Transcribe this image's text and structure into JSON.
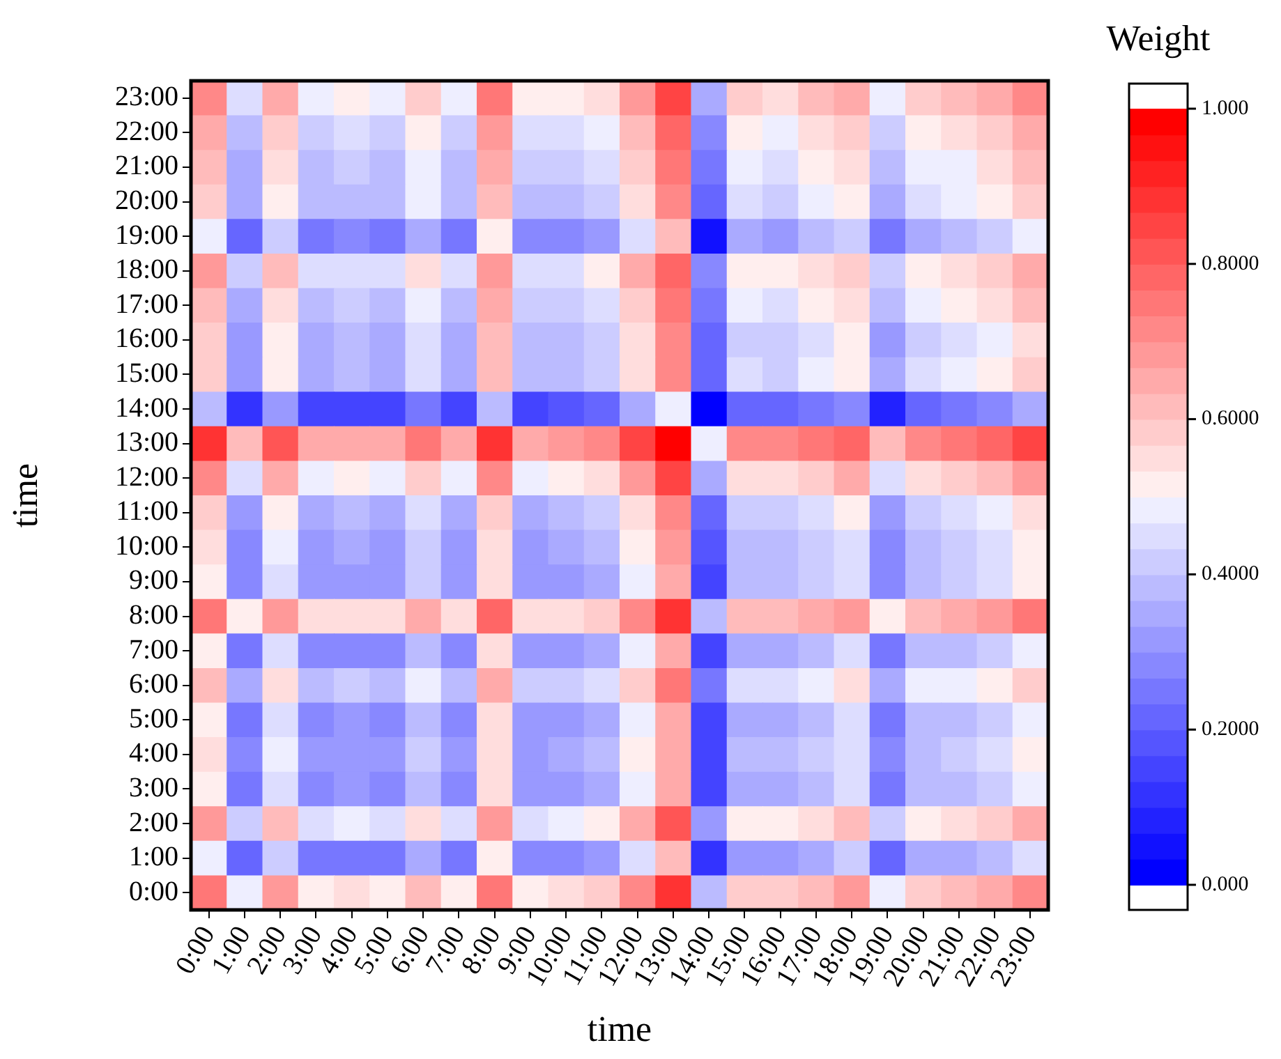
{
  "chart_data": {
    "type": "heatmap",
    "xlabel": "time",
    "ylabel": "time",
    "clabel": "Weight",
    "categories": [
      "0:00",
      "1:00",
      "2:00",
      "3:00",
      "4:00",
      "5:00",
      "6:00",
      "7:00",
      "8:00",
      "9:00",
      "10:00",
      "11:00",
      "12:00",
      "13:00",
      "14:00",
      "15:00",
      "16:00",
      "17:00",
      "18:00",
      "19:00",
      "20:00",
      "21:00",
      "22:00",
      "23:00"
    ],
    "y_categories": [
      "23:00",
      "22:00",
      "21:00",
      "20:00",
      "19:00",
      "18:00",
      "17:00",
      "16:00",
      "15:00",
      "14:00",
      "13:00",
      "12:00",
      "11:00",
      "10:00",
      "9:00",
      "8:00",
      "7:00",
      "6:00",
      "5:00",
      "4:00",
      "3:00",
      "2:00",
      "1:00",
      "0:00"
    ],
    "cells": [
      [
        0.72,
        0.45,
        0.65,
        0.48,
        0.52,
        0.48,
        0.58,
        0.48,
        0.75,
        0.52,
        0.52,
        0.55,
        0.68,
        0.85,
        0.35,
        0.58,
        0.55,
        0.62,
        0.65,
        0.48,
        0.58,
        0.62,
        0.65,
        0.72
      ],
      [
        0.65,
        0.38,
        0.58,
        0.42,
        0.45,
        0.42,
        0.52,
        0.42,
        0.68,
        0.45,
        0.45,
        0.48,
        0.62,
        0.78,
        0.28,
        0.52,
        0.48,
        0.55,
        0.58,
        0.42,
        0.52,
        0.55,
        0.58,
        0.65
      ],
      [
        0.62,
        0.35,
        0.55,
        0.38,
        0.42,
        0.38,
        0.48,
        0.38,
        0.65,
        0.42,
        0.42,
        0.45,
        0.58,
        0.75,
        0.25,
        0.48,
        0.45,
        0.52,
        0.55,
        0.38,
        0.48,
        0.48,
        0.55,
        0.62
      ],
      [
        0.58,
        0.35,
        0.52,
        0.38,
        0.38,
        0.38,
        0.48,
        0.38,
        0.62,
        0.38,
        0.38,
        0.42,
        0.55,
        0.72,
        0.22,
        0.45,
        0.42,
        0.48,
        0.52,
        0.35,
        0.45,
        0.48,
        0.52,
        0.58
      ],
      [
        0.48,
        0.22,
        0.42,
        0.25,
        0.28,
        0.25,
        0.35,
        0.25,
        0.52,
        0.28,
        0.28,
        0.32,
        0.45,
        0.62,
        0.05,
        0.35,
        0.32,
        0.38,
        0.42,
        0.25,
        0.35,
        0.38,
        0.42,
        0.48
      ],
      [
        0.68,
        0.42,
        0.62,
        0.45,
        0.45,
        0.45,
        0.55,
        0.45,
        0.68,
        0.45,
        0.45,
        0.52,
        0.65,
        0.78,
        0.28,
        0.52,
        0.52,
        0.55,
        0.58,
        0.42,
        0.52,
        0.55,
        0.58,
        0.65
      ],
      [
        0.62,
        0.35,
        0.55,
        0.38,
        0.42,
        0.38,
        0.48,
        0.38,
        0.65,
        0.42,
        0.42,
        0.45,
        0.58,
        0.75,
        0.25,
        0.48,
        0.45,
        0.52,
        0.55,
        0.38,
        0.48,
        0.52,
        0.55,
        0.62
      ],
      [
        0.58,
        0.32,
        0.52,
        0.35,
        0.38,
        0.35,
        0.45,
        0.35,
        0.62,
        0.38,
        0.38,
        0.42,
        0.55,
        0.72,
        0.22,
        0.42,
        0.42,
        0.45,
        0.52,
        0.32,
        0.42,
        0.45,
        0.48,
        0.55
      ],
      [
        0.58,
        0.32,
        0.52,
        0.35,
        0.38,
        0.35,
        0.45,
        0.35,
        0.62,
        0.38,
        0.38,
        0.42,
        0.55,
        0.72,
        0.22,
        0.45,
        0.42,
        0.48,
        0.52,
        0.35,
        0.45,
        0.48,
        0.52,
        0.58
      ],
      [
        0.38,
        0.12,
        0.32,
        0.15,
        0.15,
        0.15,
        0.25,
        0.15,
        0.38,
        0.15,
        0.18,
        0.22,
        0.35,
        0.48,
        0.02,
        0.22,
        0.22,
        0.25,
        0.28,
        0.08,
        0.22,
        0.25,
        0.28,
        0.35
      ],
      [
        0.88,
        0.62,
        0.82,
        0.65,
        0.65,
        0.65,
        0.75,
        0.65,
        0.88,
        0.65,
        0.68,
        0.72,
        0.85,
        0.98,
        0.48,
        0.72,
        0.72,
        0.75,
        0.78,
        0.62,
        0.72,
        0.75,
        0.78,
        0.85
      ],
      [
        0.72,
        0.45,
        0.65,
        0.48,
        0.52,
        0.48,
        0.58,
        0.48,
        0.72,
        0.48,
        0.52,
        0.55,
        0.68,
        0.85,
        0.35,
        0.55,
        0.55,
        0.58,
        0.65,
        0.45,
        0.55,
        0.58,
        0.62,
        0.68
      ],
      [
        0.58,
        0.32,
        0.52,
        0.35,
        0.38,
        0.35,
        0.45,
        0.35,
        0.58,
        0.35,
        0.38,
        0.42,
        0.55,
        0.72,
        0.22,
        0.42,
        0.42,
        0.45,
        0.52,
        0.32,
        0.42,
        0.45,
        0.48,
        0.55
      ],
      [
        0.55,
        0.28,
        0.48,
        0.32,
        0.35,
        0.32,
        0.42,
        0.32,
        0.55,
        0.32,
        0.35,
        0.38,
        0.52,
        0.68,
        0.18,
        0.38,
        0.38,
        0.42,
        0.45,
        0.28,
        0.38,
        0.42,
        0.45,
        0.52
      ],
      [
        0.52,
        0.28,
        0.45,
        0.32,
        0.32,
        0.32,
        0.42,
        0.32,
        0.55,
        0.32,
        0.32,
        0.35,
        0.48,
        0.65,
        0.15,
        0.38,
        0.38,
        0.42,
        0.45,
        0.28,
        0.38,
        0.42,
        0.45,
        0.52
      ],
      [
        0.75,
        0.52,
        0.68,
        0.55,
        0.55,
        0.55,
        0.65,
        0.55,
        0.78,
        0.55,
        0.55,
        0.58,
        0.72,
        0.88,
        0.38,
        0.62,
        0.62,
        0.65,
        0.68,
        0.52,
        0.62,
        0.65,
        0.68,
        0.75
      ],
      [
        0.52,
        0.25,
        0.45,
        0.28,
        0.28,
        0.28,
        0.38,
        0.28,
        0.55,
        0.32,
        0.32,
        0.35,
        0.48,
        0.65,
        0.15,
        0.35,
        0.35,
        0.38,
        0.45,
        0.25,
        0.38,
        0.38,
        0.42,
        0.48
      ],
      [
        0.62,
        0.35,
        0.55,
        0.38,
        0.42,
        0.38,
        0.48,
        0.38,
        0.65,
        0.42,
        0.42,
        0.45,
        0.58,
        0.75,
        0.25,
        0.45,
        0.45,
        0.48,
        0.55,
        0.35,
        0.48,
        0.48,
        0.52,
        0.58
      ],
      [
        0.52,
        0.25,
        0.45,
        0.28,
        0.32,
        0.28,
        0.38,
        0.28,
        0.55,
        0.32,
        0.32,
        0.35,
        0.48,
        0.65,
        0.15,
        0.35,
        0.35,
        0.38,
        0.45,
        0.25,
        0.38,
        0.38,
        0.42,
        0.48
      ],
      [
        0.55,
        0.28,
        0.48,
        0.32,
        0.32,
        0.32,
        0.42,
        0.32,
        0.55,
        0.32,
        0.35,
        0.38,
        0.52,
        0.65,
        0.15,
        0.38,
        0.38,
        0.42,
        0.45,
        0.28,
        0.38,
        0.42,
        0.45,
        0.52
      ],
      [
        0.52,
        0.25,
        0.45,
        0.28,
        0.32,
        0.28,
        0.38,
        0.28,
        0.55,
        0.32,
        0.32,
        0.35,
        0.48,
        0.65,
        0.15,
        0.35,
        0.35,
        0.38,
        0.45,
        0.25,
        0.38,
        0.38,
        0.42,
        0.48
      ],
      [
        0.68,
        0.42,
        0.62,
        0.45,
        0.48,
        0.45,
        0.55,
        0.45,
        0.68,
        0.45,
        0.48,
        0.52,
        0.65,
        0.82,
        0.32,
        0.52,
        0.52,
        0.55,
        0.62,
        0.42,
        0.52,
        0.55,
        0.58,
        0.65
      ],
      [
        0.48,
        0.22,
        0.42,
        0.25,
        0.25,
        0.25,
        0.35,
        0.25,
        0.52,
        0.28,
        0.28,
        0.32,
        0.45,
        0.62,
        0.12,
        0.32,
        0.32,
        0.35,
        0.42,
        0.22,
        0.35,
        0.35,
        0.38,
        0.45
      ],
      [
        0.75,
        0.48,
        0.68,
        0.52,
        0.55,
        0.52,
        0.62,
        0.52,
        0.75,
        0.52,
        0.55,
        0.58,
        0.72,
        0.88,
        0.38,
        0.58,
        0.58,
        0.62,
        0.68,
        0.48,
        0.58,
        0.62,
        0.65,
        0.72
      ]
    ],
    "clim": [
      0,
      1
    ],
    "cticks": [
      {
        "value": 0,
        "label": "0.000"
      },
      {
        "value": 0.2,
        "label": "0.2000"
      },
      {
        "value": 0.4,
        "label": "0.4000"
      },
      {
        "value": 0.6,
        "label": "0.6000"
      },
      {
        "value": 0.8,
        "label": "0.8000"
      },
      {
        "value": 1,
        "label": "1.000"
      }
    ]
  }
}
